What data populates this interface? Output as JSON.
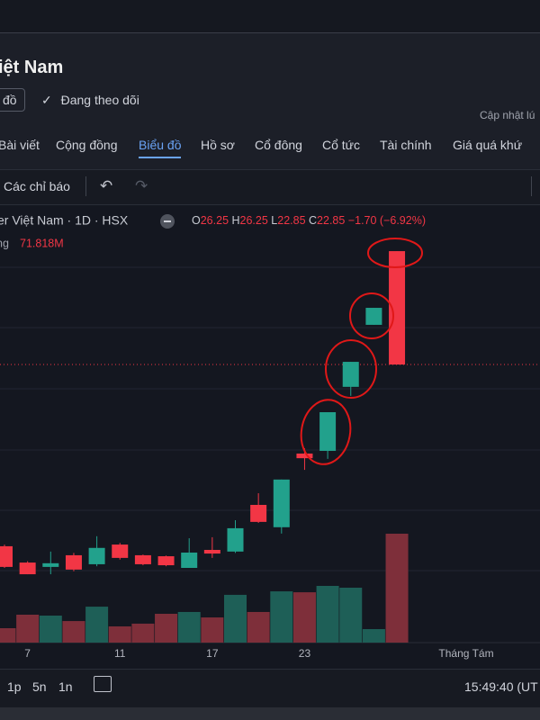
{
  "header": {
    "title": "iệt Nam",
    "button": "đồ",
    "follow": "Đang theo dõi",
    "updated": "Cập nhật lú"
  },
  "tabs": [
    "Bài viết",
    "Cộng đồng",
    "Biểu đồ",
    "Hồ sơ",
    "Cổ đông",
    "Cổ tức",
    "Tài chính",
    "Giá quá khứ"
  ],
  "active_tab": 2,
  "toolbar": {
    "indicators": "Các chỉ báo"
  },
  "footer": {
    "ranges": [
      "1p",
      "5n",
      "1n"
    ],
    "clock": "15:49:40 (UT"
  },
  "chart_data": {
    "type": "candlestick",
    "title": "er Việt Nam · 1D · HSX",
    "ohlc_letters": [
      "O",
      "H",
      "L",
      "C"
    ],
    "change_label": "−1.70 (−6.92%)",
    "volume_title": "ng",
    "volume_label": "71.818M",
    "categories": [
      null,
      "7",
      null,
      null,
      null,
      "11",
      null,
      null,
      null,
      "17",
      null,
      null,
      null,
      "23",
      null,
      null,
      null,
      null
    ],
    "extra_x_label": "Tháng Tám",
    "open": [
      17.4,
      16.91,
      16.78,
      17.13,
      16.86,
      17.45,
      17.13,
      17.1,
      16.75,
      17.29,
      17.24,
      18.64,
      17.97,
      20.18,
      20.26,
      22.18,
      24.04,
      26.25
    ],
    "high": [
      17.45,
      16.95,
      17.24,
      17.2,
      17.7,
      17.5,
      17.15,
      17.12,
      17.64,
      17.67,
      18.18,
      18.99,
      19.4,
      20.34,
      21.42,
      22.93,
      24.55,
      26.25
    ],
    "low": [
      16.75,
      16.56,
      16.56,
      16.65,
      16.8,
      17.0,
      16.83,
      16.8,
      16.75,
      17.05,
      17.2,
      18.1,
      17.78,
      19.69,
      20.02,
      21.91,
      24.04,
      22.85
    ],
    "close": [
      16.78,
      16.56,
      16.89,
      16.7,
      17.35,
      17.05,
      16.86,
      16.83,
      17.21,
      17.18,
      17.94,
      18.13,
      19.4,
      20.04,
      21.42,
      22.93,
      24.55,
      22.85
    ],
    "volume": [
      9.5,
      18.4,
      17.8,
      14.2,
      23.7,
      10.7,
      12.5,
      19.0,
      20.2,
      16.6,
      31.5,
      20.2,
      33.8,
      33.2,
      37.4,
      36.2,
      8.9,
      71.818
    ],
    "ylim": [
      14.51,
      27.52
    ],
    "volume_lim": [
      0,
      286.1
    ],
    "up_color": "#22a18c",
    "down_color": "#f23645",
    "up_volume_color": "#1e5f57",
    "down_volume_color": "#7e2f3a"
  }
}
